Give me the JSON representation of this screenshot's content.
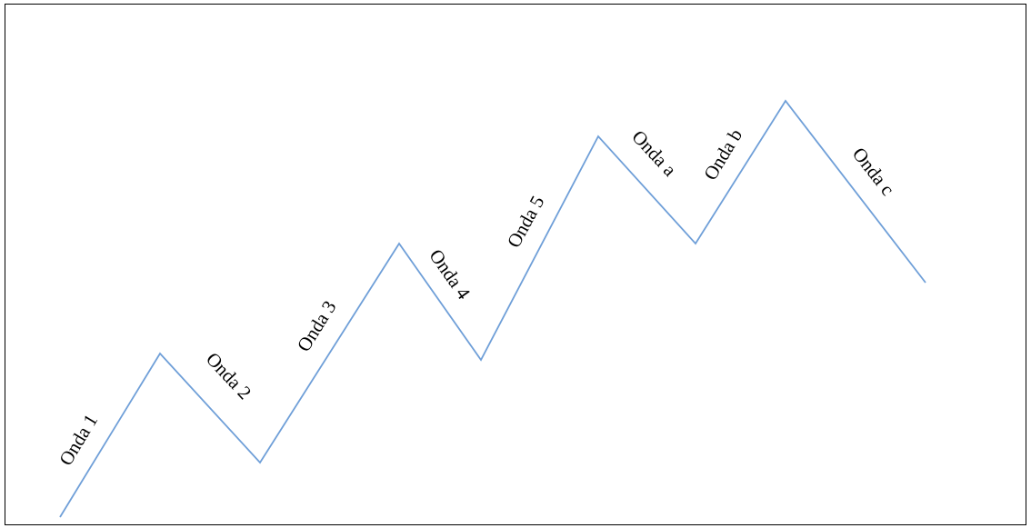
{
  "diagram": {
    "line_color": "#6f9fd8",
    "waves": [
      {
        "label": "Onda 1"
      },
      {
        "label": "Onda 2"
      },
      {
        "label": "Onda 3"
      },
      {
        "label": "Onda 4"
      },
      {
        "label": "Onda 5"
      },
      {
        "label": "Onda a"
      },
      {
        "label": "Onda b"
      },
      {
        "label": "Onda c"
      }
    ]
  }
}
